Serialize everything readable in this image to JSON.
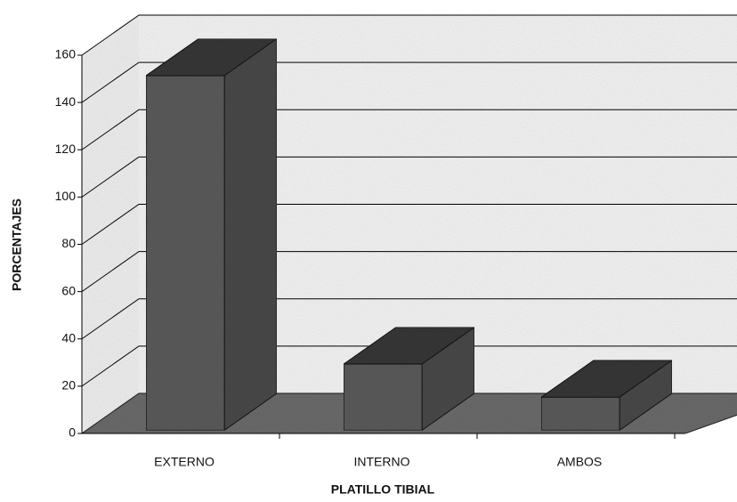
{
  "chart_data": {
    "type": "bar3d",
    "categories": [
      "EXTERNO",
      "INTERNO",
      "AMBOS"
    ],
    "values": [
      150,
      28,
      14
    ],
    "color": "#5a5a5a",
    "xlabel": "PLATILLO TIBIAL",
    "ylabel": "PORCENTAJES",
    "ylim": [
      0,
      160
    ],
    "yticks": [
      0,
      20,
      40,
      60,
      80,
      100,
      120,
      140,
      160
    ],
    "grid": true
  }
}
